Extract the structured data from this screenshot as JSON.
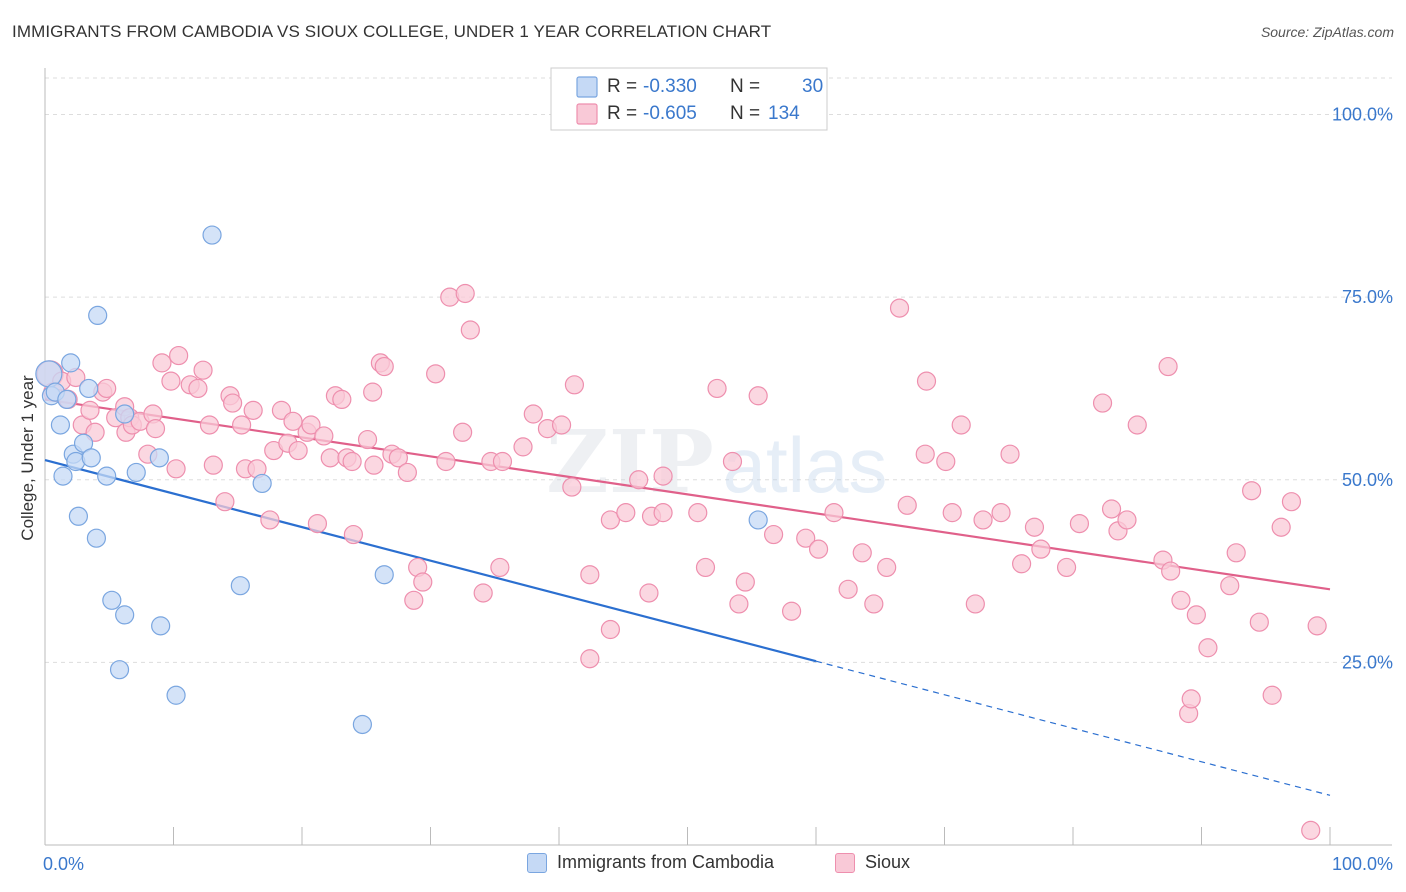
{
  "header": {
    "title": "IMMIGRANTS FROM CAMBODIA VS SIOUX COLLEGE, UNDER 1 YEAR CORRELATION CHART",
    "source": "Source: ZipAtlas.com"
  },
  "watermark": {
    "zip": "ZIP",
    "atlas": "atlas"
  },
  "colors": {
    "blue_fill": "#c5d9f5",
    "blue_stroke": "#7aa6e0",
    "blue_line": "#2b6fd0",
    "pink_fill": "#f9c9d7",
    "pink_stroke": "#ee8fae",
    "pink_line": "#e0608a",
    "tick_label": "#3a78cc",
    "grid": "#dddddd"
  },
  "legend": {
    "rows": [
      {
        "r_label": "R = ",
        "r_value": "-0.330",
        "n_label": "N = ",
        "n_value": "30"
      },
      {
        "r_label": "R = ",
        "r_value": "-0.605",
        "n_label": "N = ",
        "n_value": "134"
      }
    ]
  },
  "chart_data": {
    "type": "scatter",
    "title": "IMMIGRANTS FROM CAMBODIA VS SIOUX COLLEGE, UNDER 1 YEAR CORRELATION CHART",
    "xlabel": "",
    "ylabel": "College, Under 1 year",
    "xlim": [
      0,
      100
    ],
    "ylim": [
      0,
      105
    ],
    "x_tick_labels": [
      "0.0%",
      "100.0%"
    ],
    "y_ticks": [
      25,
      50,
      75,
      100
    ],
    "y_tick_labels": [
      "25.0%",
      "50.0%",
      "75.0%",
      "100.0%"
    ],
    "grid": "horizontal dashed",
    "legend_position": "top-center",
    "series": [
      {
        "name": "Immigrants from Cambodia",
        "color": "blue",
        "r": -0.33,
        "n": 30,
        "trend": {
          "x0": 0,
          "y0": 52.7,
          "x1": 100,
          "y1": 6.8,
          "solid_until": 60
        },
        "points": [
          [
            0.3,
            64.5
          ],
          [
            0.5,
            61.5
          ],
          [
            0.8,
            62
          ],
          [
            1.2,
            57.5
          ],
          [
            1.4,
            50.5
          ],
          [
            1.7,
            61
          ],
          [
            2,
            66
          ],
          [
            2.2,
            53.5
          ],
          [
            2.4,
            52.5
          ],
          [
            2.6,
            45
          ],
          [
            3,
            55
          ],
          [
            3.4,
            62.5
          ],
          [
            3.6,
            53
          ],
          [
            4,
            42
          ],
          [
            4.1,
            72.5
          ],
          [
            4.8,
            50.5
          ],
          [
            5.2,
            33.5
          ],
          [
            5.8,
            24
          ],
          [
            6.2,
            31.5
          ],
          [
            6.2,
            59
          ],
          [
            7.1,
            51
          ],
          [
            8.9,
            53
          ],
          [
            9,
            30
          ],
          [
            10.2,
            20.5
          ],
          [
            13,
            83.5
          ],
          [
            15.2,
            35.5
          ],
          [
            16.9,
            49.5
          ],
          [
            24.7,
            16.5
          ],
          [
            26.4,
            37
          ],
          [
            55.5,
            44.5
          ]
        ]
      },
      {
        "name": "Sioux",
        "color": "pink",
        "r": -0.605,
        "n": 134,
        "trend": {
          "x0": 0,
          "y0": 61,
          "x1": 100,
          "y1": 35
        },
        "points": [
          [
            0.4,
            64.5
          ],
          [
            0.6,
            62
          ],
          [
            1.3,
            63.5
          ],
          [
            1.8,
            61
          ],
          [
            2.4,
            64
          ],
          [
            2.9,
            57.5
          ],
          [
            3.5,
            59.5
          ],
          [
            3.9,
            56.5
          ],
          [
            4.5,
            62
          ],
          [
            4.8,
            62.5
          ],
          [
            5.5,
            58.5
          ],
          [
            6.2,
            60
          ],
          [
            6.3,
            56.5
          ],
          [
            6.6,
            58.5
          ],
          [
            6.8,
            57.5
          ],
          [
            7.4,
            58
          ],
          [
            8,
            53.5
          ],
          [
            8.4,
            59
          ],
          [
            8.6,
            57
          ],
          [
            9.1,
            66
          ],
          [
            9.8,
            63.5
          ],
          [
            10.2,
            51.5
          ],
          [
            10.4,
            67
          ],
          [
            11.3,
            63
          ],
          [
            11.9,
            62.5
          ],
          [
            12.3,
            65
          ],
          [
            12.8,
            57.5
          ],
          [
            13.1,
            52
          ],
          [
            14,
            47
          ],
          [
            14.4,
            61.5
          ],
          [
            14.6,
            60.5
          ],
          [
            15.3,
            57.5
          ],
          [
            15.6,
            51.5
          ],
          [
            16.2,
            59.5
          ],
          [
            16.5,
            51.5
          ],
          [
            17.5,
            44.5
          ],
          [
            17.8,
            54
          ],
          [
            18.4,
            59.5
          ],
          [
            18.9,
            55
          ],
          [
            19.3,
            58
          ],
          [
            19.7,
            54
          ],
          [
            20.4,
            56.5
          ],
          [
            20.7,
            57.5
          ],
          [
            21.2,
            44
          ],
          [
            21.7,
            56
          ],
          [
            22.2,
            53
          ],
          [
            22.6,
            61.5
          ],
          [
            23.1,
            61
          ],
          [
            23.5,
            53
          ],
          [
            23.9,
            52.5
          ],
          [
            24,
            42.5
          ],
          [
            25.1,
            55.5
          ],
          [
            25.5,
            62
          ],
          [
            25.6,
            52
          ],
          [
            26.1,
            66
          ],
          [
            26.4,
            65.5
          ],
          [
            27,
            53.5
          ],
          [
            27.5,
            53
          ],
          [
            28.2,
            51
          ],
          [
            28.7,
            33.5
          ],
          [
            29,
            38
          ],
          [
            29.4,
            36
          ],
          [
            30.4,
            64.5
          ],
          [
            31.2,
            52.5
          ],
          [
            31.5,
            75
          ],
          [
            32.5,
            56.5
          ],
          [
            32.7,
            75.5
          ],
          [
            33.1,
            70.5
          ],
          [
            34.1,
            34.5
          ],
          [
            34.7,
            52.5
          ],
          [
            35.4,
            38
          ],
          [
            35.6,
            52.5
          ],
          [
            37.2,
            54.5
          ],
          [
            38,
            59
          ],
          [
            39.1,
            57
          ],
          [
            40.2,
            57.5
          ],
          [
            41,
            49
          ],
          [
            41.2,
            63
          ],
          [
            42.4,
            37
          ],
          [
            42.4,
            25.5
          ],
          [
            44,
            44.5
          ],
          [
            44,
            29.5
          ],
          [
            45.2,
            45.5
          ],
          [
            46.2,
            50
          ],
          [
            47,
            34.5
          ],
          [
            47.2,
            45
          ],
          [
            48.1,
            50.5
          ],
          [
            48.1,
            45.5
          ],
          [
            50.8,
            45.5
          ],
          [
            51.4,
            38
          ],
          [
            52.3,
            62.5
          ],
          [
            53.5,
            52.5
          ],
          [
            54,
            33
          ],
          [
            54.5,
            36
          ],
          [
            55.5,
            61.5
          ],
          [
            56.7,
            42.5
          ],
          [
            58.1,
            32
          ],
          [
            59.2,
            42
          ],
          [
            60.2,
            40.5
          ],
          [
            61.4,
            45.5
          ],
          [
            62.5,
            35
          ],
          [
            63.6,
            40
          ],
          [
            64.5,
            33
          ],
          [
            65.5,
            38
          ],
          [
            66.5,
            73.5
          ],
          [
            67.1,
            46.5
          ],
          [
            68.5,
            53.5
          ],
          [
            68.6,
            63.5
          ],
          [
            70.1,
            52.5
          ],
          [
            70.6,
            45.5
          ],
          [
            71.3,
            57.5
          ],
          [
            72.4,
            33
          ],
          [
            73,
            44.5
          ],
          [
            74.4,
            45.5
          ],
          [
            75.1,
            53.5
          ],
          [
            76,
            38.5
          ],
          [
            77,
            43.5
          ],
          [
            77.5,
            40.5
          ],
          [
            79.5,
            38
          ],
          [
            80.5,
            44
          ],
          [
            82.3,
            60.5
          ],
          [
            83,
            46
          ],
          [
            83.5,
            43
          ],
          [
            84.2,
            44.5
          ],
          [
            85,
            57.5
          ],
          [
            87,
            39
          ],
          [
            87.4,
            65.5
          ],
          [
            87.6,
            37.5
          ],
          [
            88.4,
            33.5
          ],
          [
            89,
            18
          ],
          [
            89.2,
            20
          ],
          [
            89.6,
            31.5
          ],
          [
            90.5,
            27
          ],
          [
            92.2,
            35.5
          ],
          [
            92.7,
            40
          ],
          [
            93.9,
            48.5
          ],
          [
            94.5,
            30.5
          ],
          [
            95.5,
            20.5
          ],
          [
            96.2,
            43.5
          ],
          [
            97,
            47
          ],
          [
            98.5,
            2
          ],
          [
            99,
            30
          ]
        ]
      }
    ]
  },
  "bottom_legend": {
    "items": [
      {
        "label": "Immigrants from Cambodia"
      },
      {
        "label": "Sioux"
      }
    ]
  }
}
